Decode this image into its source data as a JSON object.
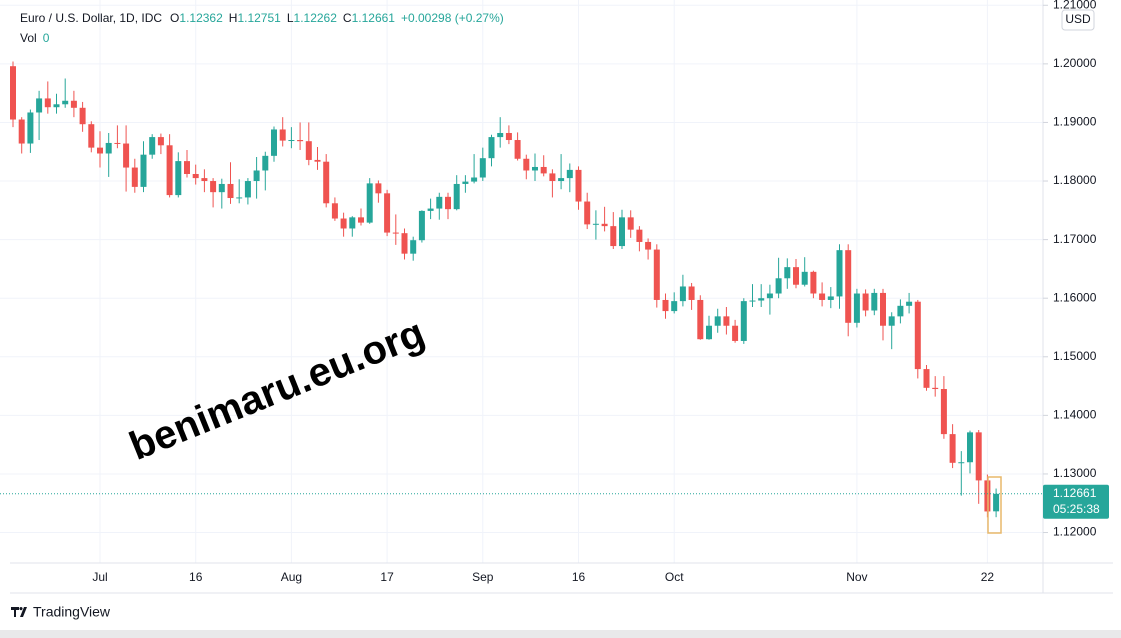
{
  "chart_data": {
    "type": "candlestick",
    "header": {
      "symbol": "Euro / U.S. Dollar, 1D, IDC",
      "items": [
        {
          "key": "O",
          "value": "1.12362"
        },
        {
          "key": "H",
          "value": "1.12751"
        },
        {
          "key": "L",
          "value": "1.12262"
        },
        {
          "key": "C",
          "value": "1.12661"
        }
      ],
      "change": "+0.00298 (+0.27%)",
      "vol_label": "Vol",
      "vol_value": 0
    },
    "currency": "USD",
    "countdown": "05:25:38",
    "watermark": "benimaru.eu.org",
    "branding": "TradingView",
    "up_color": "#26a69a",
    "down_color": "#ef5350",
    "grid": true,
    "ylim": [
      1.1148,
      1.2109
    ],
    "yticks": [
      {
        "value": 1.12,
        "label": "1.12000"
      },
      {
        "value": 1.13,
        "label": "1.13000"
      },
      {
        "value": 1.14,
        "label": "1.14000"
      },
      {
        "value": 1.15,
        "label": "1.15000"
      },
      {
        "value": 1.16,
        "label": "1.16000"
      },
      {
        "value": 1.17,
        "label": "1.17000"
      },
      {
        "value": 1.18,
        "label": "1.18000"
      },
      {
        "value": 1.19,
        "label": "1.19000"
      },
      {
        "value": 1.2,
        "label": "1.20000"
      },
      {
        "value": 1.21,
        "label": "1.21000"
      }
    ],
    "categories": [
      null,
      null,
      null,
      null,
      null,
      null,
      null,
      null,
      null,
      null,
      "Jul",
      null,
      null,
      null,
      null,
      null,
      null,
      null,
      null,
      null,
      null,
      "16",
      null,
      null,
      null,
      null,
      null,
      null,
      null,
      null,
      null,
      null,
      "Aug",
      null,
      null,
      null,
      null,
      null,
      null,
      null,
      null,
      null,
      null,
      "17",
      null,
      null,
      null,
      null,
      null,
      null,
      null,
      null,
      null,
      null,
      "Sep",
      null,
      null,
      null,
      null,
      null,
      null,
      null,
      null,
      null,
      null,
      "16",
      null,
      null,
      null,
      null,
      null,
      null,
      null,
      null,
      null,
      null,
      "Oct",
      null,
      null,
      null,
      null,
      null,
      null,
      null,
      null,
      null,
      null,
      null,
      null,
      null,
      null,
      null,
      null,
      null,
      null,
      null,
      null,
      "Nov",
      null,
      null,
      null,
      null,
      null,
      null,
      null,
      null,
      null,
      null,
      null,
      null,
      null,
      null,
      "22",
      null
    ],
    "open": [
      1.1996,
      1.1905,
      1.1864,
      1.1917,
      1.1941,
      1.1926,
      1.1931,
      1.1937,
      1.1925,
      1.1897,
      1.1857,
      1.1847,
      1.1865,
      1.1864,
      1.1823,
      1.179,
      1.1845,
      1.1875,
      1.1861,
      1.1776,
      1.1834,
      1.1812,
      1.1805,
      1.18,
      1.1781,
      1.1795,
      1.1771,
      1.1772,
      1.18,
      1.1818,
      1.1843,
      1.1888,
      1.1869,
      1.187,
      1.1868,
      1.1836,
      1.1833,
      1.1762,
      1.1736,
      1.1719,
      1.1738,
      1.1729,
      1.1796,
      1.1779,
      1.1712,
      1.1711,
      1.1676,
      1.1699,
      1.1749,
      1.1753,
      1.1773,
      1.1752,
      1.1795,
      1.1799,
      1.1806,
      1.1839,
      1.1875,
      1.1882,
      1.187,
      1.1838,
      1.1818,
      1.1824,
      1.1813,
      1.18,
      1.1805,
      1.1819,
      1.1765,
      1.1726,
      1.1727,
      1.1723,
      1.1689,
      1.1738,
      1.1717,
      1.1696,
      1.1683,
      1.1597,
      1.1578,
      1.1595,
      1.162,
      1.1597,
      1.153,
      1.1553,
      1.1569,
      1.1553,
      1.1527,
      1.1595,
      1.1596,
      1.16,
      1.1608,
      1.1634,
      1.1653,
      1.1623,
      1.1645,
      1.1608,
      1.1597,
      1.1603,
      1.1682,
      1.1558,
      1.1608,
      1.1579,
      1.1609,
      1.1553,
      1.1569,
      1.1587,
      1.1594,
      1.1479,
      1.1447,
      1.1445,
      1.1368,
      1.1319,
      1.132,
      1.1371,
      1.1289,
      1.12362
    ],
    "high": [
      1.2004,
      1.1909,
      1.1922,
      1.1954,
      1.197,
      1.1949,
      1.1975,
      1.1954,
      1.1935,
      1.1902,
      1.1885,
      1.1882,
      1.1895,
      1.1895,
      1.1838,
      1.1868,
      1.188,
      1.1881,
      1.188,
      1.1849,
      1.1853,
      1.1828,
      1.182,
      1.1805,
      1.1804,
      1.1832,
      1.1803,
      1.1805,
      1.1841,
      1.185,
      1.1893,
      1.1909,
      1.1892,
      1.19,
      1.19,
      1.1858,
      1.1846,
      1.1772,
      1.1746,
      1.174,
      1.1753,
      1.1805,
      1.1801,
      1.1785,
      1.1743,
      1.1719,
      1.1705,
      1.175,
      1.177,
      1.178,
      1.178,
      1.181,
      1.181,
      1.1846,
      1.1857,
      1.1879,
      1.1909,
      1.1895,
      1.1883,
      1.1845,
      1.1847,
      1.1844,
      1.182,
      1.1846,
      1.183,
      1.1825,
      1.178,
      1.175,
      1.1756,
      1.1747,
      1.1751,
      1.175,
      1.1723,
      1.1702,
      1.1692,
      1.1608,
      1.161,
      1.164,
      1.1626,
      1.1605,
      1.157,
      1.1582,
      1.1585,
      1.1563,
      1.16,
      1.1624,
      1.1624,
      1.1623,
      1.1669,
      1.1668,
      1.1667,
      1.167,
      1.1647,
      1.1627,
      1.1619,
      1.1692,
      1.1692,
      1.1616,
      1.1615,
      1.1616,
      1.1616,
      1.1576,
      1.1598,
      1.1609,
      1.1597,
      1.1486,
      1.1467,
      1.1467,
      1.1385,
      1.1339,
      1.1374,
      1.1375,
      1.1299,
      1.12751
    ],
    "low": [
      1.1892,
      1.1847,
      1.1848,
      1.187,
      1.1915,
      1.1915,
      1.1925,
      1.1909,
      1.1884,
      1.1849,
      1.1823,
      1.1807,
      1.1856,
      1.1782,
      1.178,
      1.1781,
      1.1838,
      1.1846,
      1.1772,
      1.1772,
      1.1806,
      1.1794,
      1.1781,
      1.1755,
      1.1753,
      1.1761,
      1.1762,
      1.176,
      1.177,
      1.1784,
      1.1833,
      1.1859,
      1.1856,
      1.1853,
      1.1827,
      1.1819,
      1.1755,
      1.1732,
      1.1705,
      1.1705,
      1.1724,
      1.1727,
      1.1763,
      1.1706,
      1.1691,
      1.1666,
      1.1664,
      1.1695,
      1.1735,
      1.1734,
      1.1735,
      1.175,
      1.178,
      1.1796,
      1.18,
      1.1825,
      1.1857,
      1.1863,
      1.1835,
      1.1803,
      1.18,
      1.1808,
      1.1772,
      1.1786,
      1.1781,
      1.1751,
      1.1718,
      1.17,
      1.1714,
      1.1684,
      1.1684,
      1.1703,
      1.168,
      1.1666,
      1.1584,
      1.1565,
      1.1574,
      1.1586,
      1.158,
      1.1529,
      1.1529,
      1.1541,
      1.1538,
      1.1524,
      1.1522,
      1.1585,
      1.1585,
      1.1572,
      1.16,
      1.1616,
      1.1617,
      1.162,
      1.16,
      1.1586,
      1.1583,
      1.1582,
      1.1535,
      1.155,
      1.1569,
      1.1571,
      1.1528,
      1.1513,
      1.1557,
      1.1574,
      1.1463,
      1.1442,
      1.1432,
      1.136,
      1.131,
      1.1263,
      1.1301,
      1.1249,
      1.1226,
      1.12262
    ],
    "close": [
      1.1905,
      1.1864,
      1.1917,
      1.1941,
      1.1926,
      1.1931,
      1.1937,
      1.1925,
      1.1897,
      1.1857,
      1.1847,
      1.1865,
      1.1864,
      1.1823,
      1.179,
      1.1845,
      1.1875,
      1.1861,
      1.1776,
      1.1834,
      1.1812,
      1.1805,
      1.18,
      1.1781,
      1.1795,
      1.1771,
      1.1772,
      1.18,
      1.1818,
      1.1843,
      1.1888,
      1.1869,
      1.187,
      1.1868,
      1.1836,
      1.1833,
      1.1762,
      1.1736,
      1.1719,
      1.1738,
      1.1729,
      1.1796,
      1.1779,
      1.1712,
      1.1711,
      1.1676,
      1.1699,
      1.1749,
      1.1753,
      1.1773,
      1.1752,
      1.1795,
      1.1799,
      1.1806,
      1.1839,
      1.1875,
      1.1882,
      1.187,
      1.1838,
      1.1818,
      1.1824,
      1.1813,
      1.18,
      1.1805,
      1.1819,
      1.1765,
      1.1726,
      1.1727,
      1.1723,
      1.1689,
      1.1738,
      1.1717,
      1.1696,
      1.1683,
      1.1597,
      1.1578,
      1.1595,
      1.162,
      1.1597,
      1.153,
      1.1553,
      1.1569,
      1.1553,
      1.1527,
      1.1595,
      1.1596,
      1.16,
      1.1608,
      1.1634,
      1.1653,
      1.1623,
      1.1645,
      1.1608,
      1.1597,
      1.1603,
      1.1682,
      1.1558,
      1.1608,
      1.1579,
      1.1609,
      1.1553,
      1.1569,
      1.1587,
      1.1594,
      1.1479,
      1.1447,
      1.1445,
      1.1368,
      1.1319,
      1.132,
      1.1371,
      1.1289,
      1.1236,
      1.12661
    ]
  }
}
